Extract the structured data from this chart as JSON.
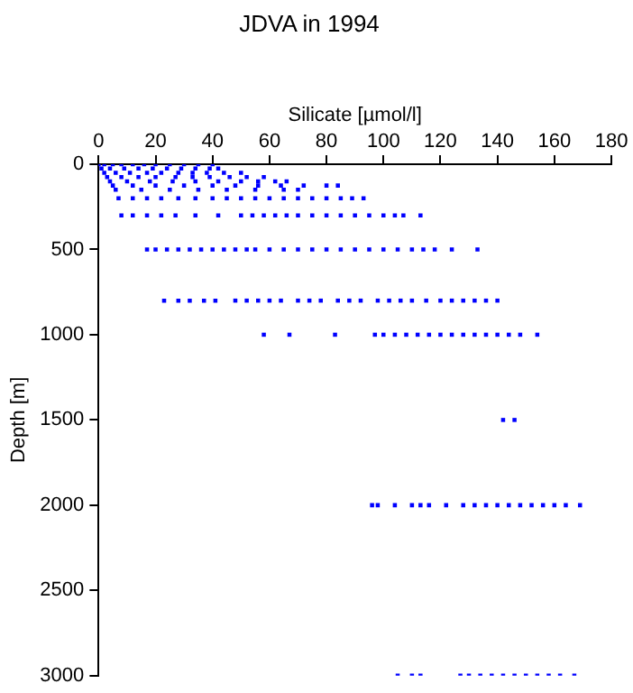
{
  "chart_data": {
    "type": "scatter",
    "title": "JDVA in 1994",
    "xlabel": "Silicate [µmol/l]",
    "ylabel": "Depth [m]",
    "xlim": [
      0,
      180
    ],
    "xticks": [
      0,
      20,
      40,
      60,
      80,
      100,
      120,
      140,
      160,
      180
    ],
    "ylim": [
      3000,
      0
    ],
    "yticks": [
      0,
      500,
      1000,
      1500,
      2000,
      2500,
      3000
    ],
    "grid": false,
    "legend": false,
    "marker": "square",
    "series": [
      {
        "color": "#0000ff",
        "x": [
          0,
          2,
          5,
          8,
          12,
          16,
          20,
          25,
          30,
          35,
          40,
          1,
          4,
          9,
          14,
          19,
          24,
          29,
          34,
          39,
          42,
          2,
          6,
          11,
          17,
          22,
          28,
          33,
          38,
          44,
          50,
          3,
          8,
          14,
          20,
          27,
          33,
          39,
          46,
          52,
          58,
          4,
          10,
          18,
          26,
          34,
          42,
          50,
          56,
          62,
          66,
          5,
          12,
          20,
          30,
          40,
          48,
          56,
          64,
          72,
          80,
          84,
          6,
          15,
          25,
          35,
          45,
          55,
          65,
          70,
          7,
          12,
          17,
          22,
          28,
          34,
          40,
          45,
          50,
          55,
          60,
          65,
          70,
          75,
          80,
          85,
          89,
          93,
          8,
          12,
          17,
          22,
          27,
          34,
          42,
          50,
          54,
          58,
          62,
          66,
          70,
          75,
          80,
          85,
          90,
          95,
          100,
          104,
          107,
          113,
          17,
          20,
          24,
          28,
          32,
          36,
          40,
          44,
          48,
          52,
          55,
          60,
          65,
          70,
          75,
          80,
          85,
          90,
          95,
          100,
          105,
          110,
          114,
          118,
          124,
          133,
          23,
          28,
          32,
          37,
          41,
          48,
          52,
          56,
          60,
          64,
          70,
          74,
          78,
          84,
          88,
          92,
          98,
          102,
          106,
          110,
          115,
          120,
          124,
          128,
          132,
          136,
          140,
          58,
          67,
          83,
          97,
          100,
          104,
          108,
          112,
          116,
          120,
          124,
          128,
          132,
          136,
          140,
          144,
          148,
          154,
          142,
          146,
          96,
          98,
          104,
          110,
          113,
          116,
          122,
          128,
          132,
          136,
          140,
          144,
          148,
          152,
          156,
          160,
          164,
          169,
          105,
          110,
          113,
          127,
          130,
          134,
          138,
          142,
          146,
          150,
          154,
          158,
          162,
          167
        ],
        "values": [
          0,
          0,
          0,
          0,
          0,
          0,
          0,
          0,
          0,
          0,
          0,
          25,
          25,
          25,
          25,
          25,
          25,
          25,
          25,
          25,
          25,
          50,
          50,
          50,
          50,
          50,
          50,
          50,
          50,
          50,
          50,
          75,
          75,
          75,
          75,
          75,
          75,
          75,
          75,
          75,
          75,
          100,
          100,
          100,
          100,
          100,
          100,
          100,
          100,
          100,
          100,
          125,
          125,
          125,
          125,
          125,
          125,
          125,
          125,
          125,
          125,
          125,
          150,
          150,
          150,
          150,
          150,
          150,
          150,
          150,
          200,
          200,
          200,
          200,
          200,
          200,
          200,
          200,
          200,
          200,
          200,
          200,
          200,
          200,
          200,
          200,
          200,
          200,
          300,
          300,
          300,
          300,
          300,
          300,
          300,
          300,
          300,
          300,
          300,
          300,
          300,
          300,
          300,
          300,
          300,
          300,
          300,
          300,
          300,
          300,
          500,
          500,
          500,
          500,
          500,
          500,
          500,
          500,
          500,
          500,
          500,
          500,
          500,
          500,
          500,
          500,
          500,
          500,
          500,
          500,
          500,
          500,
          500,
          500,
          500,
          500,
          800,
          800,
          800,
          800,
          800,
          800,
          800,
          800,
          800,
          800,
          800,
          800,
          800,
          800,
          800,
          800,
          800,
          800,
          800,
          800,
          800,
          800,
          800,
          800,
          800,
          800,
          800,
          1000,
          1000,
          1000,
          1000,
          1000,
          1000,
          1000,
          1000,
          1000,
          1000,
          1000,
          1000,
          1000,
          1000,
          1000,
          1000,
          1000,
          1000,
          1500,
          1500,
          2000,
          2000,
          2000,
          2000,
          2000,
          2000,
          2000,
          2000,
          2000,
          2000,
          2000,
          2000,
          2000,
          2000,
          2000,
          2000,
          2000,
          2000,
          3000,
          3000,
          3000,
          3000,
          3000,
          3000,
          3000,
          3000,
          3000,
          3000,
          3000,
          3000,
          3000,
          3000
        ]
      }
    ]
  }
}
